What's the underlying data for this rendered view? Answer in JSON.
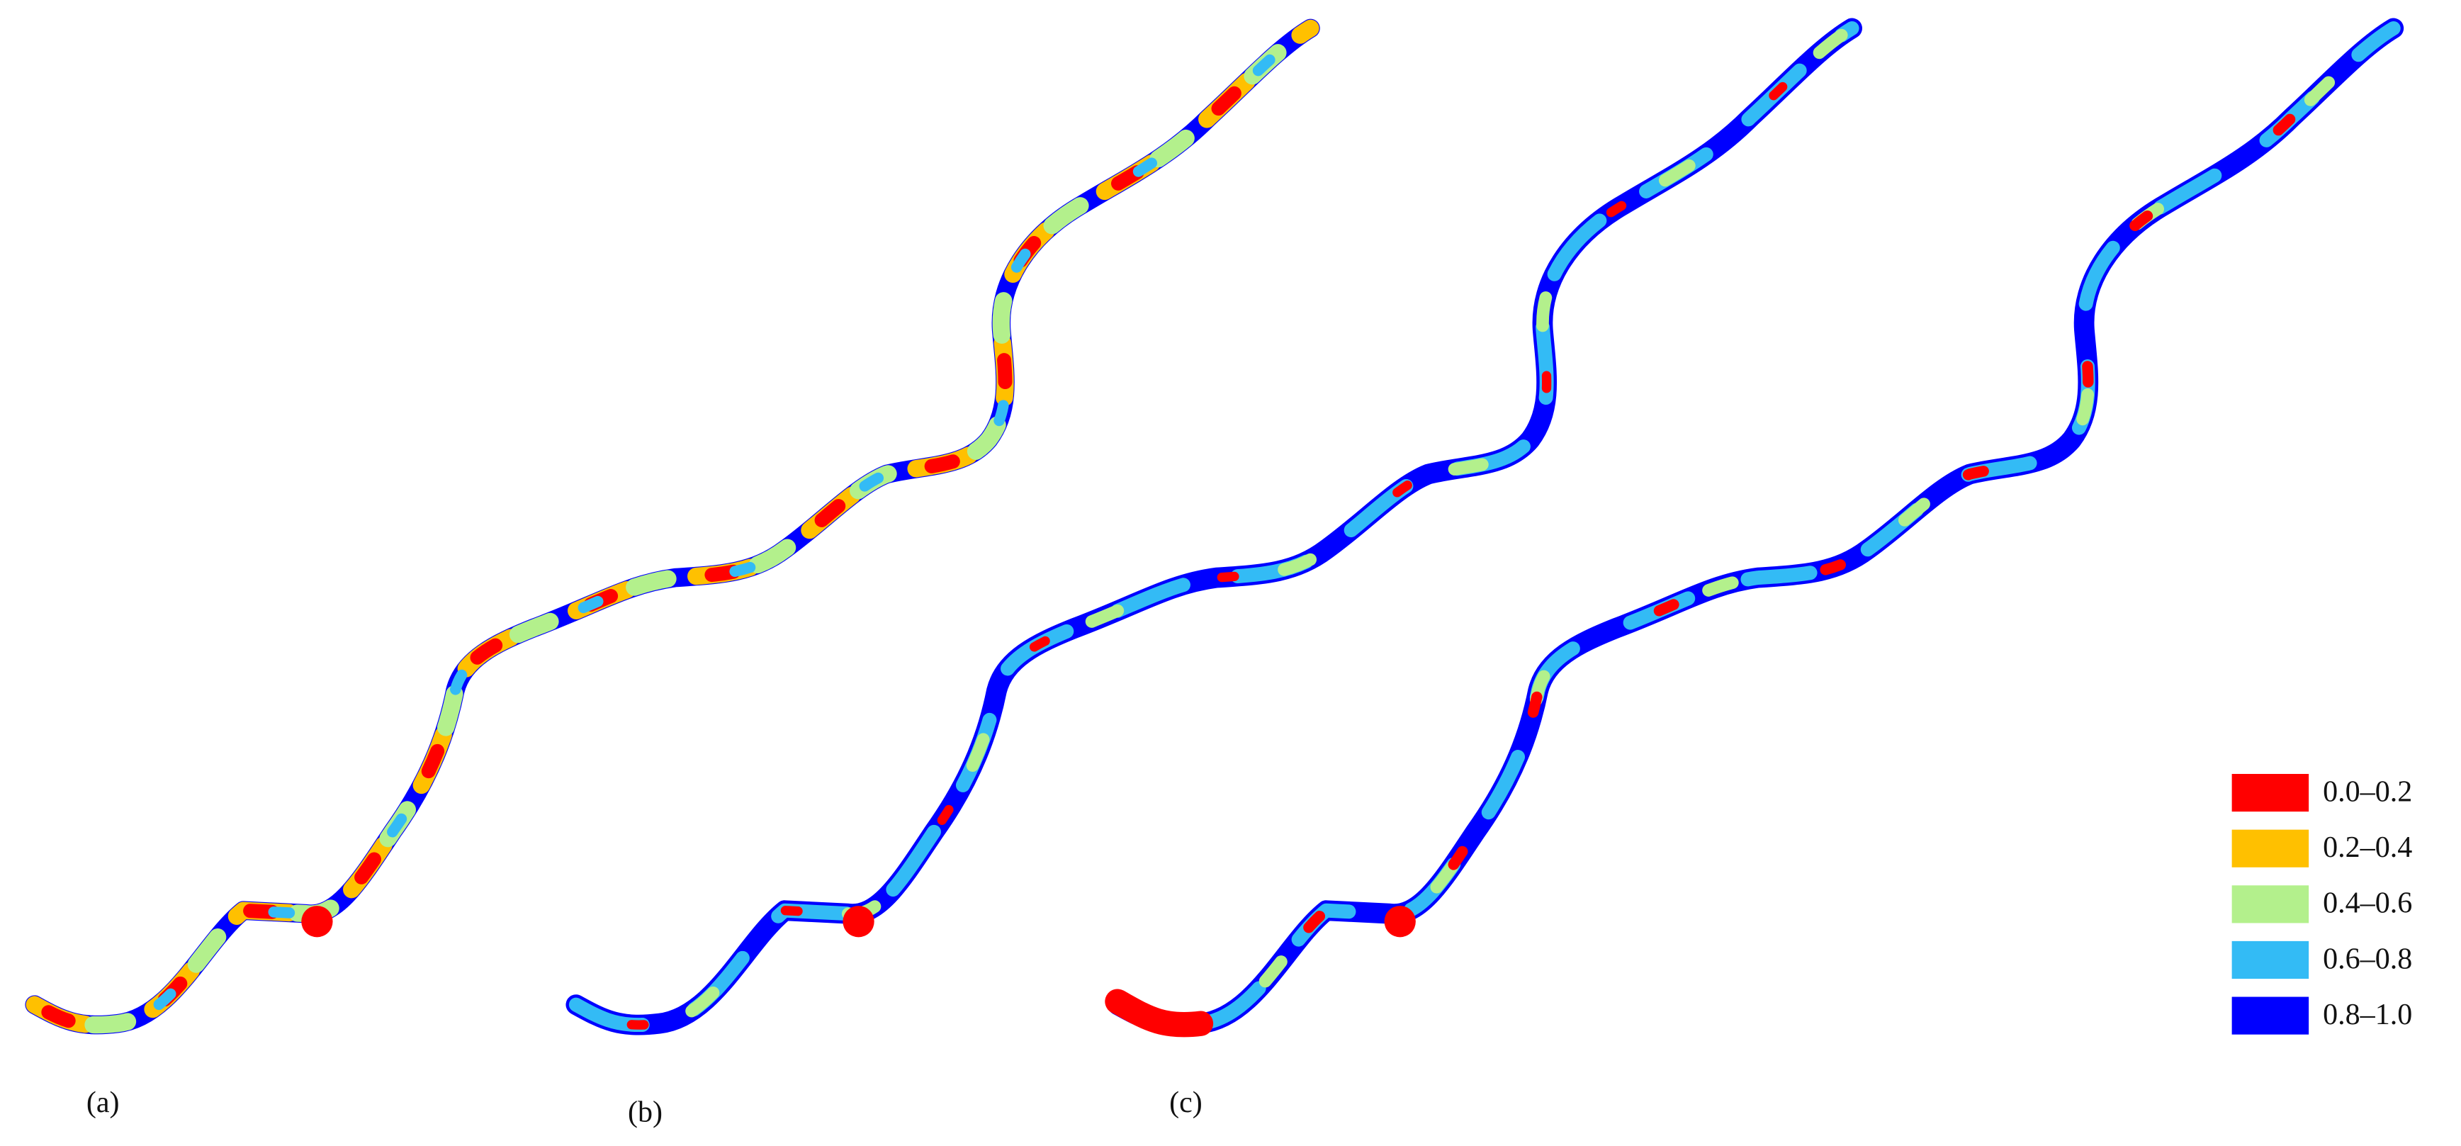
{
  "panels": [
    {
      "label": "(a)"
    },
    {
      "label": "(b)"
    },
    {
      "label": "(c)"
    }
  ],
  "legend": [
    {
      "label": "0.0–0.2",
      "color": "#ff0000"
    },
    {
      "label": "0.2–0.4",
      "color": "#ffc000"
    },
    {
      "label": "0.4–0.6",
      "color": "#b3f08c"
    },
    {
      "label": "0.6–0.8",
      "color": "#33bbf5"
    },
    {
      "label": "0.8–1.0",
      "color": "#0000ff"
    }
  ]
}
